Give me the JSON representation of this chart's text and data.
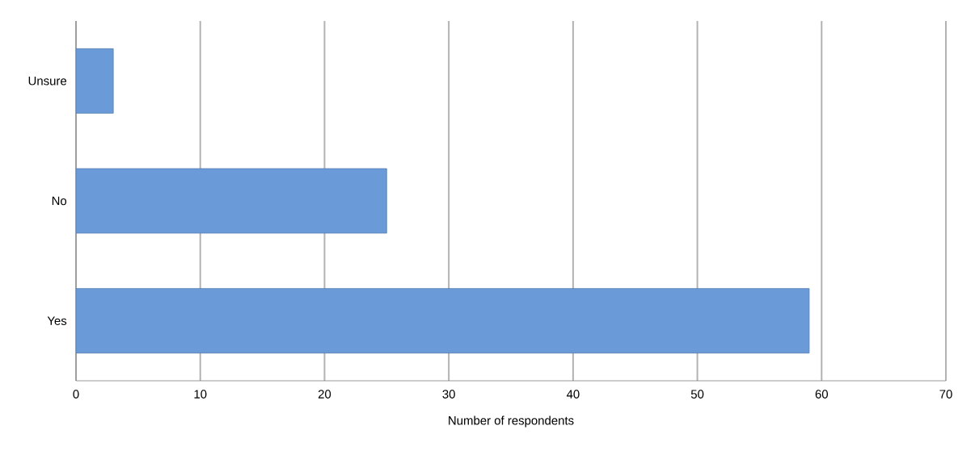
{
  "chart_data": {
    "type": "bar",
    "orientation": "horizontal",
    "xlabel": "Number of respondents",
    "categories": [
      "Unsure",
      "No",
      "Yes"
    ],
    "values": [
      3,
      25,
      59
    ],
    "color": "#6a9bd8",
    "xlim": [
      0,
      70
    ],
    "xticks": [
      0,
      10,
      20,
      30,
      40,
      50,
      60,
      70
    ],
    "grid": "x"
  }
}
